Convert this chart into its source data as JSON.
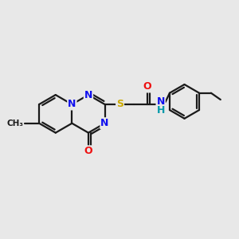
{
  "bg_color": "#e8e8e8",
  "bond_color": "#1a1a1a",
  "bond_width": 1.6,
  "dbo": 0.05,
  "atom_colors": {
    "N": "#1010ee",
    "O": "#ee1010",
    "S": "#ccaa00",
    "NH_color": "#0099aa",
    "H_color": "#0099aa"
  },
  "font_size": 9.0,
  "xlim": [
    -2.2,
    2.8
  ],
  "ylim": [
    -1.5,
    1.5
  ]
}
